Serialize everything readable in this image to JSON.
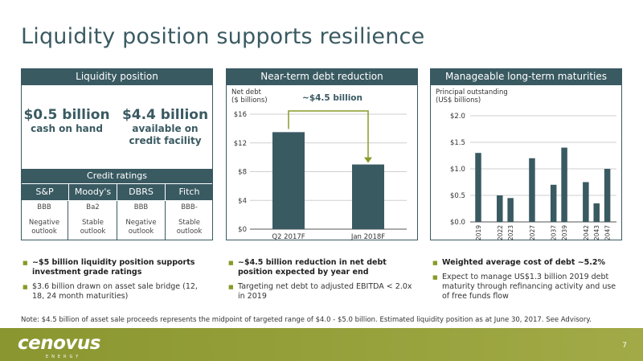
{
  "title": "Liquidity position supports resilience",
  "liquidity": {
    "header": "Liquidity position",
    "cash_amount": "$0.5 billion",
    "cash_label": "cash on hand",
    "credit_amount": "$4.4 billion",
    "credit_label_1": "available on",
    "credit_label_2": "credit facility",
    "ratings_header": "Credit ratings",
    "ratings": [
      {
        "agency": "S&P",
        "rating": "BBB",
        "outlook_1": "Negative",
        "outlook_2": "outlook"
      },
      {
        "agency": "Moody's",
        "rating": "Ba2",
        "outlook_1": "Stable",
        "outlook_2": "outlook"
      },
      {
        "agency": "DBRS",
        "rating": "BBB",
        "outlook_1": "Negative",
        "outlook_2": "outlook"
      },
      {
        "agency": "Fitch",
        "rating": "BBB-",
        "outlook_1": "Stable",
        "outlook_2": "outlook"
      }
    ],
    "bullets": [
      {
        "text": "~$5 billion liquidity position supports investment grade ratings",
        "bold": true
      },
      {
        "text": "$3.6 billion drawn on asset sale bridge (12, 18, 24 month maturities)",
        "bold": false
      }
    ]
  },
  "debt_reduction": {
    "header": "Near-term debt reduction",
    "bullets": [
      {
        "text": "~$4.5 billion reduction in net debt position expected by year end",
        "bold": true
      },
      {
        "text": "Targeting net debt to adjusted EBITDA < 2.0x in 2019",
        "bold": false
      }
    ]
  },
  "maturities": {
    "header": "Manageable long-term maturities",
    "bullets": [
      {
        "text": "Weighted average cost of debt ~5.2%",
        "bold": true
      },
      {
        "text": "Expect to manage US$1.3 billion 2019 debt maturity through refinancing activity and use of free funds flow",
        "bold": false
      }
    ]
  },
  "chart_data": [
    {
      "type": "bar",
      "ylabel_1": "Net debt",
      "ylabel_2": "($ billions)",
      "categories": [
        "Q2 2017F",
        "Jan 2018F"
      ],
      "values": [
        13.5,
        9.0
      ],
      "ylim": [
        0,
        16
      ],
      "yticks": [
        0,
        4,
        8,
        12,
        16
      ],
      "ytick_labels": [
        "$0",
        "$4",
        "$8",
        "$12",
        "$16"
      ],
      "annotation": "~$4.5 billion",
      "bar_color": "#3a5a62",
      "annotation_color": "#8a9a2a"
    },
    {
      "type": "bar",
      "ylabel_1": "Principal outstanding",
      "ylabel_2": "(US$ billions)",
      "categories": [
        "2019",
        "2022",
        "2023",
        "2027",
        "2037",
        "2039",
        "2042",
        "2043",
        "2047"
      ],
      "category_slots": [
        0,
        2,
        3,
        5,
        7,
        8,
        10,
        11,
        12
      ],
      "values": [
        1.3,
        0.5,
        0.45,
        1.2,
        0.7,
        1.4,
        0.75,
        0.35,
        1.0
      ],
      "ylim": [
        0,
        2.0
      ],
      "yticks": [
        0,
        0.5,
        1.0,
        1.5,
        2.0
      ],
      "ytick_labels": [
        "$0.0",
        "$0.5",
        "$1.0",
        "$1.5",
        "$2.0"
      ],
      "bar_color": "#3a5a62"
    }
  ],
  "note": "Note: $4.5 billion of asset sale proceeds represents the midpoint of targeted range of $4.0 - $5.0 billion. Estimated liquidity position as at June 30, 2017. See Advisory.",
  "footer": {
    "logo": "cenovus",
    "logo_sub": "ENERGY",
    "page_number": "7"
  }
}
